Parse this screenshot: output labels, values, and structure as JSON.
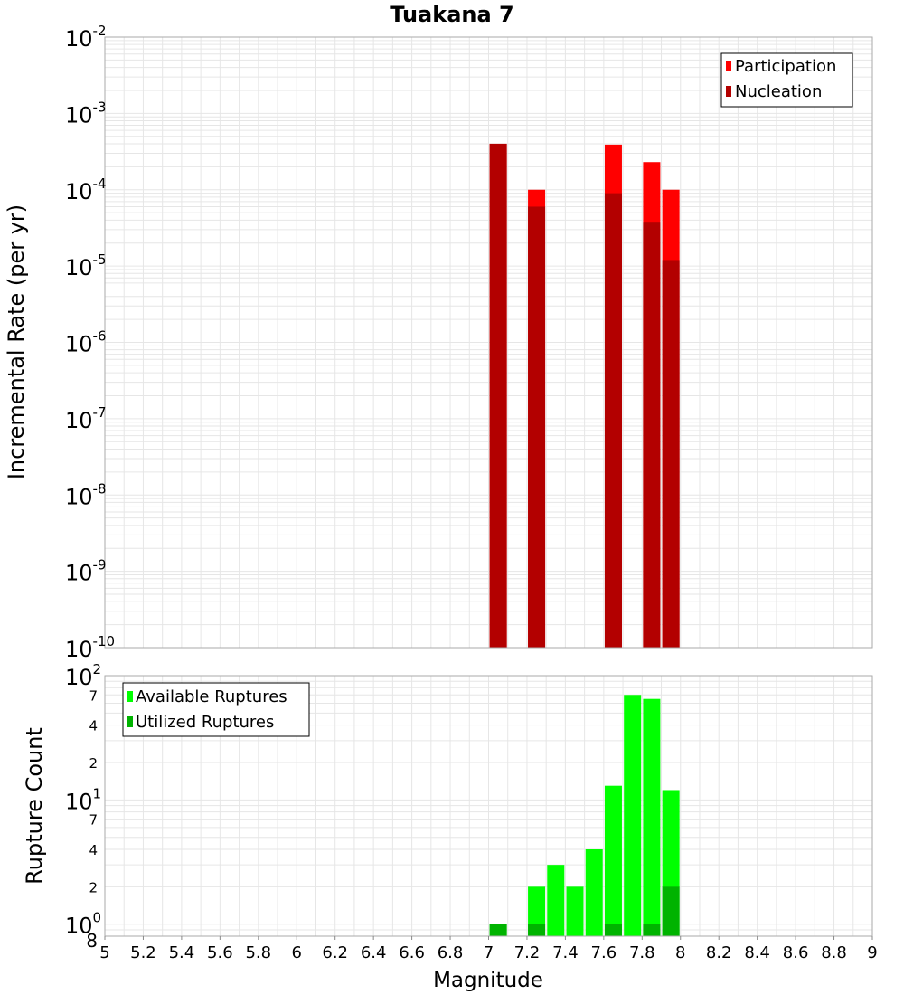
{
  "chart_data": [
    {
      "type": "bar",
      "title": "Tuakana 7",
      "ylabel": "Incremental Rate (per yr)",
      "y_scale": "log",
      "ylim": [
        1e-10,
        0.01
      ],
      "xlim": [
        5,
        9
      ],
      "legend_position": "top-right",
      "grid": true,
      "series": [
        {
          "name": "Participation",
          "color": "#ff0000",
          "x": [
            7.05,
            7.25,
            7.65,
            7.85,
            7.95
          ],
          "values": [
            0.0004,
            0.0001,
            0.00039,
            0.00023,
            0.0001
          ]
        },
        {
          "name": "Nucleation",
          "color": "#b30000",
          "x": [
            7.05,
            7.25,
            7.65,
            7.85,
            7.95
          ],
          "values": [
            0.0004,
            6e-05,
            9e-05,
            3.8e-05,
            1.2e-05
          ]
        }
      ]
    },
    {
      "type": "bar",
      "xlabel": "Magnitude",
      "ylabel": "Rupture Count",
      "y_scale": "log",
      "ylim": [
        0.8,
        100
      ],
      "xlim": [
        5,
        9
      ],
      "legend_position": "top-left",
      "grid": true,
      "series": [
        {
          "name": "Available Ruptures",
          "color": "#00ff00",
          "x": [
            7.05,
            7.25,
            7.35,
            7.45,
            7.55,
            7.65,
            7.75,
            7.85,
            7.95
          ],
          "values": [
            1,
            2,
            3,
            2,
            4,
            13,
            70,
            65,
            12
          ]
        },
        {
          "name": "Utilized Ruptures",
          "color": "#00b300",
          "x": [
            7.05,
            7.25,
            7.65,
            7.85,
            7.95
          ],
          "values": [
            1,
            1,
            1,
            1,
            2
          ]
        }
      ]
    }
  ],
  "top_axis": {
    "ticks": [
      {
        "base": "10",
        "exp": "-2"
      },
      {
        "base": "10",
        "exp": "-3"
      },
      {
        "base": "10",
        "exp": "-4"
      },
      {
        "base": "10",
        "exp": "-5"
      },
      {
        "base": "10",
        "exp": "-6"
      },
      {
        "base": "10",
        "exp": "-7"
      },
      {
        "base": "10",
        "exp": "-8"
      },
      {
        "base": "10",
        "exp": "-9"
      },
      {
        "base": "10",
        "exp": "-10"
      }
    ],
    "tick_values": [
      0.01,
      0.001,
      0.0001,
      1e-05,
      1e-06,
      1e-07,
      1e-08,
      1e-09,
      1e-10
    ]
  },
  "bottom_axis": {
    "major_ticks": [
      {
        "base": "10",
        "exp": "2",
        "value": 100
      },
      {
        "base": "10",
        "exp": "1",
        "value": 10
      },
      {
        "base": "10",
        "exp": "0",
        "value": 1
      }
    ],
    "minor_ticks": [
      {
        "label": "7",
        "value": 70
      },
      {
        "label": "4",
        "value": 40
      },
      {
        "label": "2",
        "value": 20
      },
      {
        "label": "7",
        "value": 7
      },
      {
        "label": "4",
        "value": 4
      },
      {
        "label": "2",
        "value": 2
      },
      {
        "label": "8",
        "value": 0.8
      }
    ]
  },
  "x_axis": {
    "ticks": [
      "5",
      "5.2",
      "5.4",
      "5.6",
      "5.8",
      "6",
      "6.2",
      "6.4",
      "6.6",
      "6.8",
      "7",
      "7.2",
      "7.4",
      "7.6",
      "7.8",
      "8",
      "8.2",
      "8.4",
      "8.6",
      "8.8",
      "9"
    ],
    "tick_values": [
      5,
      5.2,
      5.4,
      5.6,
      5.8,
      6,
      6.2,
      6.4,
      6.6,
      6.8,
      7,
      7.2,
      7.4,
      7.6,
      7.8,
      8,
      8.2,
      8.4,
      8.6,
      8.8,
      9
    ]
  },
  "colors": {
    "grid": "#e6e6e6",
    "frame": "#aaaaaa",
    "background": "#ffffff"
  }
}
